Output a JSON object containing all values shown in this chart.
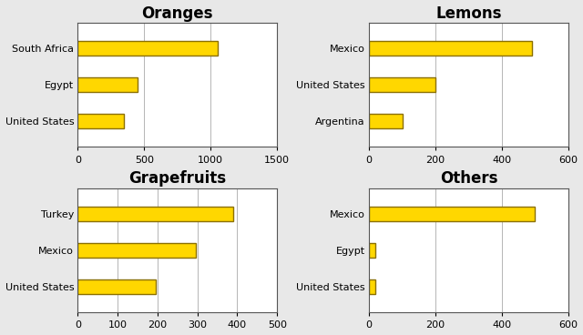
{
  "charts": [
    {
      "title": "Oranges",
      "countries": [
        "South Africa",
        "Egypt",
        "United States"
      ],
      "values": [
        1050,
        450,
        350
      ],
      "xlim": [
        0,
        1500
      ],
      "xticks": [
        0,
        500,
        1000,
        1500
      ]
    },
    {
      "title": "Lemons",
      "countries": [
        "Mexico",
        "United States",
        "Argentina"
      ],
      "values": [
        490,
        200,
        100
      ],
      "xlim": [
        0,
        600
      ],
      "xticks": [
        0,
        200,
        400,
        600
      ]
    },
    {
      "title": "Grapefruits",
      "countries": [
        "Turkey",
        "Mexico",
        "United States"
      ],
      "values": [
        390,
        295,
        195
      ],
      "xlim": [
        0,
        500
      ],
      "xticks": [
        0,
        100,
        200,
        300,
        400,
        500
      ]
    },
    {
      "title": "Others",
      "countries": [
        "Mexico",
        "Egypt",
        "United States"
      ],
      "values": [
        500,
        20,
        20
      ],
      "xlim": [
        0,
        600
      ],
      "xticks": [
        0,
        200,
        400,
        600
      ]
    }
  ],
  "bar_color": "#FFD700",
  "bar_edgecolor": "#8B7000",
  "bar_linewidth": 1.0,
  "bar_height": 0.4,
  "title_fontsize": 12,
  "label_fontsize": 8,
  "tick_fontsize": 8,
  "background_color": "#ffffff",
  "fig_facecolor": "#e8e8e8"
}
